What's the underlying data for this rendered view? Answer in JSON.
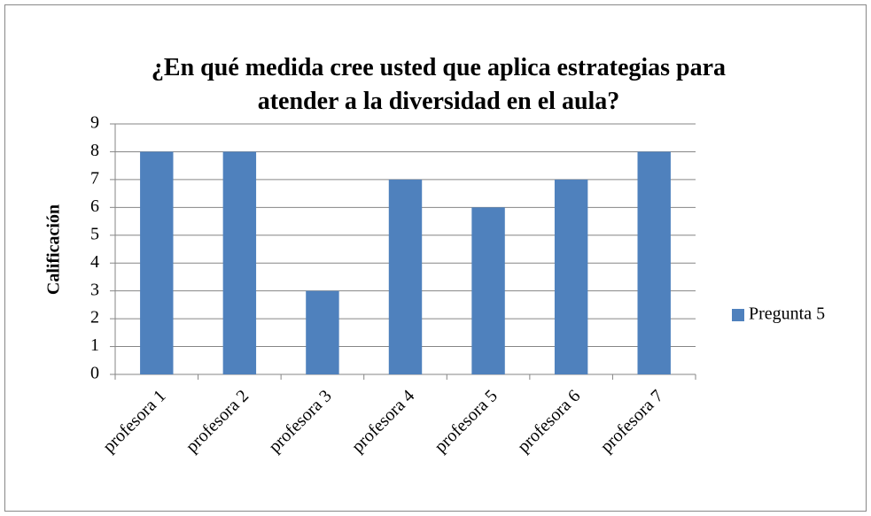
{
  "chart_data": {
    "type": "bar",
    "title": "¿En qué medida cree usted que aplica estrategias para atender a la diversidad en el aula?",
    "y_label": "Calificación",
    "categories": [
      "profesora 1",
      "profesora 2",
      "profesora 3",
      "profesora 4",
      "profesora 5",
      "profesora 6",
      "profesora 7"
    ],
    "series": [
      {
        "name": "Pregunta 5",
        "color": "#4f81bd",
        "values": [
          8,
          8,
          3,
          7,
          6,
          7,
          8
        ]
      }
    ],
    "ylim": [
      0,
      9
    ],
    "yticks": [
      0,
      1,
      2,
      3,
      4,
      5,
      6,
      7,
      8,
      9
    ],
    "grid": true,
    "legend": "right"
  }
}
